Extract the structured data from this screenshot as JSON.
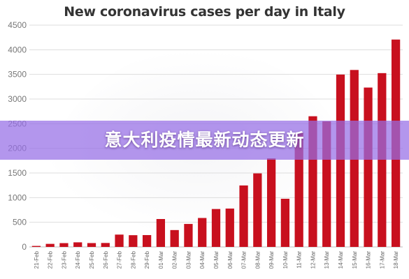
{
  "chart_data": {
    "type": "bar",
    "title": "New coronavirus cases per day in Italy",
    "xlabel": "",
    "ylabel": "",
    "ylim": [
      0,
      4500
    ],
    "yticks": [
      0,
      500,
      1000,
      1500,
      2000,
      2500,
      3000,
      3500,
      4000,
      4500
    ],
    "grid": true,
    "categories": [
      "21-Feb",
      "22-Feb",
      "23-Feb",
      "24-Feb",
      "25-Feb",
      "26-Feb",
      "27-Feb",
      "28-Feb",
      "29-Feb",
      "01-Mar",
      "02-Mar",
      "03-Mar",
      "04-Mar",
      "05-Mar",
      "06-Mar",
      "07-Mar",
      "08-Mar",
      "09-Mar",
      "10-Mar",
      "11-Mar",
      "12-Mar",
      "13-Mar",
      "14-Mar",
      "15-Mar",
      "16-Mar",
      "17-Mar",
      "18-Mar"
    ],
    "values": [
      20,
      62,
      77,
      93,
      78,
      80,
      250,
      238,
      240,
      566,
      342,
      466,
      587,
      769,
      778,
      1247,
      1492,
      1797,
      977,
      2313,
      2651,
      2547,
      3497,
      3590,
      3233,
      3526,
      4207
    ],
    "bar_color": "#c8101e"
  },
  "banner": {
    "text": "意大利疫情最新动态更新",
    "color": "#9a70e8"
  }
}
